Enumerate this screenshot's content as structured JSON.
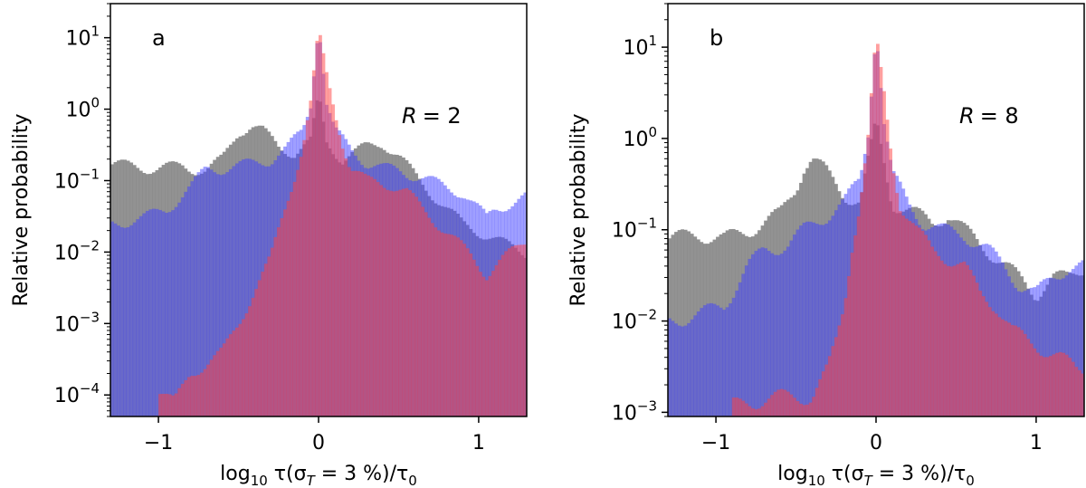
{
  "chart_data": [
    {
      "type": "bar",
      "panel_label": "a",
      "annotation": "R = 2",
      "annotation_var": "R",
      "annotation_value": "= 2",
      "xlabel_parts": {
        "pre": "log",
        "sub1": "10",
        "tau": " τ(σ",
        "sub2": "T",
        "mid": " = 3 %)/τ",
        "sub3": "0"
      },
      "ylabel": "Relative probability",
      "xlim": [
        -1.3,
        1.3
      ],
      "ylim": [
        5e-05,
        30
      ],
      "log_y": true,
      "xticks": [
        {
          "value": -1,
          "label": "−1"
        },
        {
          "value": 0,
          "label": "0"
        },
        {
          "value": 1,
          "label": "1"
        }
      ],
      "yticks": [
        {
          "value": 0.0001,
          "base": "10",
          "exp": "−4"
        },
        {
          "value": 0.001,
          "base": "10",
          "exp": "−3"
        },
        {
          "value": 0.01,
          "base": "10",
          "exp": "−2"
        },
        {
          "value": 0.1,
          "base": "10",
          "exp": "−1"
        },
        {
          "value": 1,
          "base": "10",
          "exp": "0"
        },
        {
          "value": 10,
          "base": "10",
          "exp": "1"
        }
      ],
      "series": [
        {
          "color": "#7f7f7f",
          "opacity": 0.85,
          "points": [
            [
              -1.3,
              0.17
            ],
            [
              -1.0,
              0.15
            ],
            [
              -0.85,
              0.16
            ],
            [
              -0.7,
              0.14
            ],
            [
              -0.6,
              0.2
            ],
            [
              -0.5,
              0.5
            ],
            [
              -0.42,
              0.6
            ],
            [
              -0.35,
              0.5
            ],
            [
              -0.25,
              0.3
            ],
            [
              -0.15,
              0.25
            ],
            [
              -0.05,
              0.35
            ],
            [
              0,
              1.5
            ],
            [
              0.05,
              0.35
            ],
            [
              0.15,
              0.2
            ],
            [
              0.3,
              0.3
            ],
            [
              0.4,
              0.35
            ],
            [
              0.5,
              0.22
            ],
            [
              0.6,
              0.12
            ],
            [
              0.7,
              0.07
            ],
            [
              0.8,
              0.04
            ],
            [
              0.9,
              0.025
            ],
            [
              1.0,
              0.02
            ],
            [
              1.1,
              0.015
            ],
            [
              1.2,
              0.012
            ],
            [
              1.3,
              0.01
            ]
          ]
        },
        {
          "color": "#4040ff",
          "opacity": 0.5,
          "points": [
            [
              -1.3,
              0.025
            ],
            [
              -1.1,
              0.03
            ],
            [
              -0.95,
              0.04
            ],
            [
              -0.8,
              0.08
            ],
            [
              -0.7,
              0.15
            ],
            [
              -0.6,
              0.15
            ],
            [
              -0.5,
              0.16
            ],
            [
              -0.4,
              0.18
            ],
            [
              -0.3,
              0.2
            ],
            [
              -0.2,
              0.28
            ],
            [
              -0.1,
              0.5
            ],
            [
              -0.05,
              1.2
            ],
            [
              0,
              18
            ],
            [
              0.05,
              1.2
            ],
            [
              0.1,
              0.5
            ],
            [
              0.2,
              0.28
            ],
            [
              0.3,
              0.18
            ],
            [
              0.4,
              0.15
            ],
            [
              0.5,
              0.14
            ],
            [
              0.6,
              0.12
            ],
            [
              0.7,
              0.1
            ],
            [
              0.8,
              0.08
            ],
            [
              0.9,
              0.07
            ],
            [
              1.0,
              0.04
            ],
            [
              1.05,
              0.03
            ],
            [
              1.1,
              0.04
            ],
            [
              1.2,
              0.05
            ],
            [
              1.3,
              0.06
            ]
          ]
        },
        {
          "color": "#ff4040",
          "opacity": 0.5,
          "points": [
            [
              -1.0,
              0.00012
            ],
            [
              -0.9,
              8e-05
            ],
            [
              -0.8,
              0.0002
            ],
            [
              -0.6,
              0.0004
            ],
            [
              -0.5,
              0.001
            ],
            [
              -0.4,
              0.003
            ],
            [
              -0.3,
              0.008
            ],
            [
              -0.2,
              0.05
            ],
            [
              -0.15,
              0.12
            ],
            [
              -0.1,
              0.3
            ],
            [
              -0.05,
              1.2
            ],
            [
              0,
              12
            ],
            [
              0.05,
              3
            ],
            [
              0.1,
              1
            ],
            [
              0.15,
              0.35
            ],
            [
              0.2,
              0.15
            ],
            [
              0.3,
              0.1
            ],
            [
              0.45,
              0.09
            ],
            [
              0.55,
              0.07
            ],
            [
              0.65,
              0.04
            ],
            [
              0.75,
              0.025
            ],
            [
              0.85,
              0.015
            ],
            [
              0.95,
              0.009
            ],
            [
              1.05,
              0.005
            ],
            [
              1.15,
              0.008
            ],
            [
              1.25,
              0.012
            ],
            [
              1.3,
              0.015
            ]
          ]
        }
      ]
    },
    {
      "type": "bar",
      "panel_label": "b",
      "annotation": "R = 8",
      "annotation_var": "R",
      "annotation_value": "= 8",
      "xlabel_parts": {
        "pre": "log",
        "sub1": "10",
        "tau": " τ(σ",
        "sub2": "T",
        "mid": " = 3 %)/τ",
        "sub3": "0"
      },
      "ylabel": "Relative probability",
      "xlim": [
        -1.3,
        1.3
      ],
      "ylim": [
        0.0009,
        30
      ],
      "log_y": true,
      "xticks": [
        {
          "value": -1,
          "label": "−1"
        },
        {
          "value": 0,
          "label": "0"
        },
        {
          "value": 1,
          "label": "1"
        }
      ],
      "yticks": [
        {
          "value": 0.001,
          "base": "10",
          "exp": "−3"
        },
        {
          "value": 0.01,
          "base": "10",
          "exp": "−2"
        },
        {
          "value": 0.1,
          "base": "10",
          "exp": "−1"
        },
        {
          "value": 1,
          "base": "10",
          "exp": "0"
        },
        {
          "value": 10,
          "base": "10",
          "exp": "1"
        }
      ],
      "series": [
        {
          "color": "#7f7f7f",
          "opacity": 0.85,
          "points": [
            [
              -1.3,
              0.08
            ],
            [
              -1.1,
              0.09
            ],
            [
              -0.95,
              0.08
            ],
            [
              -0.8,
              0.1
            ],
            [
              -0.7,
              0.12
            ],
            [
              -0.6,
              0.15
            ],
            [
              -0.5,
              0.3
            ],
            [
              -0.45,
              0.5
            ],
            [
              -0.4,
              0.6
            ],
            [
              -0.32,
              0.45
            ],
            [
              -0.2,
              0.25
            ],
            [
              -0.1,
              0.2
            ],
            [
              0,
              1.5
            ],
            [
              0.1,
              0.2
            ],
            [
              0.25,
              0.15
            ],
            [
              0.35,
              0.12
            ],
            [
              0.45,
              0.15
            ],
            [
              0.55,
              0.1
            ],
            [
              0.7,
              0.06
            ],
            [
              0.85,
              0.035
            ],
            [
              1.0,
              0.02
            ],
            [
              1.1,
              0.03
            ],
            [
              1.2,
              0.03
            ],
            [
              1.3,
              0.04
            ]
          ]
        },
        {
          "color": "#4040ff",
          "opacity": 0.5,
          "points": [
            [
              -1.3,
              0.01
            ],
            [
              -1.1,
              0.012
            ],
            [
              -0.95,
              0.015
            ],
            [
              -0.8,
              0.04
            ],
            [
              -0.7,
              0.06
            ],
            [
              -0.55,
              0.07
            ],
            [
              -0.45,
              0.1
            ],
            [
              -0.3,
              0.15
            ],
            [
              -0.2,
              0.2
            ],
            [
              -0.1,
              0.35
            ],
            [
              -0.05,
              1.2
            ],
            [
              0,
              18
            ],
            [
              0.05,
              1.5
            ],
            [
              0.1,
              0.4
            ],
            [
              0.2,
              0.2
            ],
            [
              0.3,
              0.12
            ],
            [
              0.4,
              0.1
            ],
            [
              0.55,
              0.09
            ],
            [
              0.7,
              0.06
            ],
            [
              0.8,
              0.04
            ],
            [
              0.9,
              0.025
            ],
            [
              1.0,
              0.02
            ],
            [
              1.1,
              0.03
            ],
            [
              1.2,
              0.04
            ],
            [
              1.3,
              0.04
            ]
          ]
        },
        {
          "color": "#ff4040",
          "opacity": 0.5,
          "points": [
            [
              -0.9,
              0.0012
            ],
            [
              -0.6,
              0.0015
            ],
            [
              -0.4,
              0.0015
            ],
            [
              -0.3,
              0.003
            ],
            [
              -0.25,
              0.006
            ],
            [
              -0.2,
              0.015
            ],
            [
              -0.15,
              0.07
            ],
            [
              -0.1,
              0.2
            ],
            [
              -0.05,
              1.0
            ],
            [
              0,
              12
            ],
            [
              0.05,
              3
            ],
            [
              0.1,
              0.6
            ],
            [
              0.15,
              0.2
            ],
            [
              0.25,
              0.1
            ],
            [
              0.35,
              0.06
            ],
            [
              0.45,
              0.05
            ],
            [
              0.55,
              0.04
            ],
            [
              0.65,
              0.02
            ],
            [
              0.75,
              0.015
            ],
            [
              0.85,
              0.008
            ],
            [
              0.95,
              0.006
            ],
            [
              1.05,
              0.005
            ],
            [
              1.15,
              0.004
            ],
            [
              1.25,
              0.003
            ],
            [
              1.3,
              0.003
            ]
          ]
        }
      ]
    }
  ]
}
